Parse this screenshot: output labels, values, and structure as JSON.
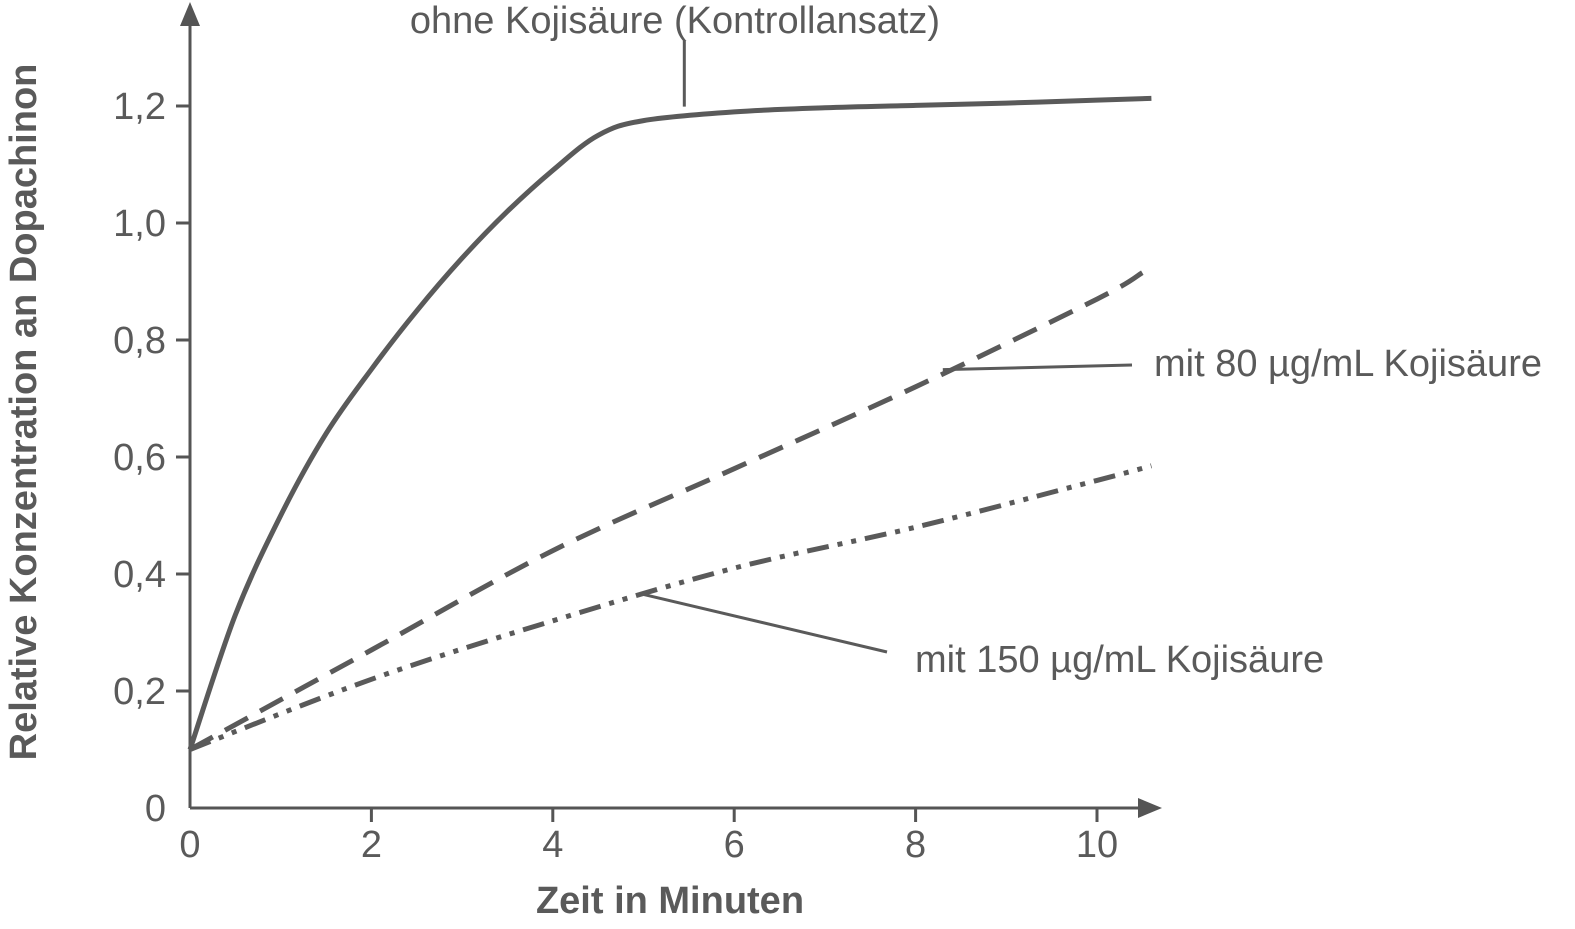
{
  "chart_data": {
    "type": "line",
    "xlabel": "Zeit in Minuten",
    "ylabel": "Relative Konzentration an Dopachinon",
    "xlim": [
      0,
      10.6
    ],
    "ylim": [
      0,
      1.35
    ],
    "x_ticks": [
      0,
      2,
      4,
      6,
      8,
      10
    ],
    "x_tick_labels": [
      "0",
      "2",
      "4",
      "6",
      "8",
      "10"
    ],
    "y_ticks": [
      0,
      0.2,
      0.4,
      0.6,
      0.8,
      1.0,
      1.2
    ],
    "y_tick_labels": [
      "0",
      "0,2",
      "0,4",
      "0,6",
      "0,8",
      "1,0",
      "1,2"
    ],
    "grid": false,
    "color": "#5a5a5a",
    "series": [
      {
        "name": "ohne Kojisäure (Kontrollansatz)",
        "style": "solid",
        "x": [
          0,
          0.5,
          1,
          1.5,
          2,
          2.5,
          3,
          3.5,
          4,
          4.5,
          5,
          6,
          7,
          8,
          9,
          10,
          10.6
        ],
        "y": [
          0.1,
          0.33,
          0.5,
          0.64,
          0.75,
          0.85,
          0.94,
          1.02,
          1.09,
          1.15,
          1.175,
          1.19,
          1.197,
          1.201,
          1.205,
          1.21,
          1.213
        ]
      },
      {
        "name": "mit 80 µg/mL Kojisäure",
        "style": "dashed",
        "x": [
          0,
          2,
          4,
          6,
          8,
          10,
          10.5
        ],
        "y": [
          0.1,
          0.27,
          0.44,
          0.58,
          0.72,
          0.87,
          0.915
        ]
      },
      {
        "name": "mit 150 µg/mL Kojisäure",
        "style": "dash-dot-dot",
        "x": [
          0,
          2,
          4,
          6,
          8,
          10,
          10.6
        ],
        "y": [
          0.1,
          0.22,
          0.32,
          0.41,
          0.48,
          0.56,
          0.585
        ]
      }
    ],
    "annotations": [
      {
        "text": "ohne Kojisäure (Kontrollansatz)",
        "series": 0,
        "at_x": 5.45
      },
      {
        "text": "mit 80 µg/mL Kojisäure",
        "series": 1,
        "at_x": 8.3
      },
      {
        "text": "mit 150 µg/mL Kojisäure",
        "series": 2,
        "at_x": 5.0
      }
    ]
  }
}
